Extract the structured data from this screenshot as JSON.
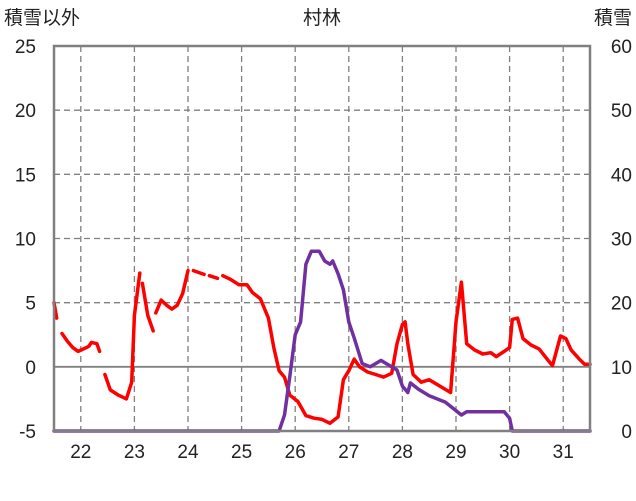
{
  "chart_data": {
    "type": "line",
    "title": "村林",
    "left_axis_label": "積雪以外",
    "right_axis_label": "積雪",
    "x_range": [
      21.5,
      31.5
    ],
    "x_ticks": [
      22,
      23,
      24,
      25,
      26,
      27,
      28,
      29,
      30,
      31
    ],
    "left_ylim": [
      -5,
      25
    ],
    "left_ticks": [
      -5,
      0,
      5,
      10,
      15,
      20,
      25
    ],
    "right_ylim": [
      0,
      60
    ],
    "right_ticks": [
      0,
      10,
      20,
      30,
      40,
      50,
      60
    ],
    "grid": {
      "vertical": "dashed",
      "horizontal": "dashed",
      "zero_line": "solid"
    },
    "series": [
      {
        "axis": "left",
        "color": "#ff0000",
        "segments": [
          [
            [
              21.5,
              5.0
            ],
            [
              21.55,
              3.8
            ]
          ],
          [
            [
              21.65,
              2.6
            ],
            [
              21.75,
              2.0
            ],
            [
              21.85,
              1.5
            ],
            [
              21.95,
              1.2
            ],
            [
              22.05,
              1.4
            ],
            [
              22.15,
              1.6
            ],
            [
              22.2,
              1.9
            ],
            [
              22.3,
              1.8
            ],
            [
              22.35,
              1.2
            ]
          ],
          [
            [
              22.45,
              -0.6
            ],
            [
              22.55,
              -1.8
            ],
            [
              22.7,
              -2.2
            ],
            [
              22.85,
              -2.5
            ],
            [
              22.95,
              -1.2
            ],
            [
              23.0,
              4.0
            ],
            [
              23.1,
              7.3
            ]
          ],
          [
            [
              23.15,
              6.5
            ],
            [
              23.25,
              4.0
            ],
            [
              23.35,
              2.8
            ]
          ],
          [
            [
              23.4,
              4.2
            ],
            [
              23.5,
              5.2
            ],
            [
              23.6,
              4.8
            ],
            [
              23.7,
              4.5
            ],
            [
              23.8,
              4.8
            ],
            [
              23.9,
              5.7
            ],
            [
              24.0,
              7.5
            ]
          ],
          [
            [
              24.1,
              7.5
            ],
            [
              24.3,
              7.2
            ]
          ],
          [
            [
              24.4,
              7.1
            ],
            [
              24.55,
              6.9
            ]
          ],
          [
            [
              24.65,
              7.1
            ],
            [
              24.8,
              6.8
            ],
            [
              24.95,
              6.4
            ],
            [
              25.1,
              6.4
            ],
            [
              25.2,
              5.8
            ],
            [
              25.35,
              5.3
            ],
            [
              25.5,
              3.8
            ],
            [
              25.6,
              1.5
            ],
            [
              25.7,
              -0.3
            ],
            [
              25.8,
              -0.8
            ],
            [
              25.9,
              -2.2
            ],
            [
              26.05,
              -2.7
            ],
            [
              26.2,
              -3.8
            ],
            [
              26.35,
              -4.0
            ],
            [
              26.5,
              -4.1
            ],
            [
              26.65,
              -4.4
            ],
            [
              26.8,
              -3.9
            ],
            [
              26.9,
              -1.0
            ],
            [
              27.0,
              -0.3
            ],
            [
              27.1,
              0.6
            ],
            [
              27.2,
              0.0
            ],
            [
              27.35,
              -0.4
            ],
            [
              27.5,
              -0.6
            ],
            [
              27.65,
              -0.8
            ],
            [
              27.8,
              -0.5
            ],
            [
              27.9,
              1.8
            ],
            [
              28.0,
              3.3
            ],
            [
              28.05,
              3.5
            ],
            [
              28.1,
              1.8
            ],
            [
              28.2,
              -0.6
            ],
            [
              28.35,
              -1.2
            ],
            [
              28.5,
              -1.0
            ],
            [
              28.7,
              -1.5
            ],
            [
              28.9,
              -2.0
            ],
            [
              29.0,
              3.5
            ],
            [
              29.1,
              6.6
            ],
            [
              29.2,
              1.8
            ],
            [
              29.35,
              1.3
            ],
            [
              29.5,
              1.0
            ],
            [
              29.65,
              1.1
            ],
            [
              29.75,
              0.8
            ],
            [
              29.9,
              1.2
            ],
            [
              30.0,
              1.5
            ],
            [
              30.05,
              3.7
            ],
            [
              30.15,
              3.8
            ],
            [
              30.25,
              2.2
            ],
            [
              30.4,
              1.7
            ],
            [
              30.55,
              1.4
            ],
            [
              30.7,
              0.6
            ],
            [
              30.8,
              0.1
            ],
            [
              30.95,
              2.4
            ],
            [
              31.05,
              2.2
            ],
            [
              31.15,
              1.3
            ],
            [
              31.3,
              0.6
            ],
            [
              31.4,
              0.2
            ],
            [
              31.5,
              0.2
            ]
          ]
        ]
      },
      {
        "axis": "right",
        "color": "#7030a0",
        "segments": [
          [
            [
              21.5,
              0.0
            ],
            [
              25.7,
              0.0
            ],
            [
              25.8,
              2.5
            ],
            [
              25.9,
              8.5
            ],
            [
              26.0,
              15.0
            ],
            [
              26.1,
              17.0
            ],
            [
              26.2,
              26.0
            ],
            [
              26.3,
              28.0
            ],
            [
              26.45,
              28.0
            ],
            [
              26.55,
              26.5
            ],
            [
              26.65,
              26.0
            ],
            [
              26.7,
              26.5
            ],
            [
              26.8,
              24.5
            ],
            [
              26.9,
              22.0
            ],
            [
              27.0,
              17.0
            ],
            [
              27.1,
              14.5
            ],
            [
              27.25,
              10.5
            ],
            [
              27.4,
              10.0
            ],
            [
              27.5,
              10.5
            ],
            [
              27.6,
              11.0
            ],
            [
              27.7,
              10.5
            ],
            [
              27.8,
              10.0
            ],
            [
              27.9,
              9.5
            ],
            [
              28.0,
              7.0
            ],
            [
              28.1,
              6.0
            ],
            [
              28.15,
              7.5
            ],
            [
              28.3,
              6.5
            ],
            [
              28.5,
              5.5
            ],
            [
              28.8,
              4.5
            ],
            [
              28.95,
              3.5
            ],
            [
              29.1,
              2.5
            ],
            [
              29.2,
              3.0
            ],
            [
              29.6,
              3.0
            ],
            [
              29.9,
              3.0
            ],
            [
              30.0,
              2.0
            ],
            [
              30.05,
              0.0
            ],
            [
              31.5,
              0.0
            ]
          ]
        ]
      }
    ]
  }
}
